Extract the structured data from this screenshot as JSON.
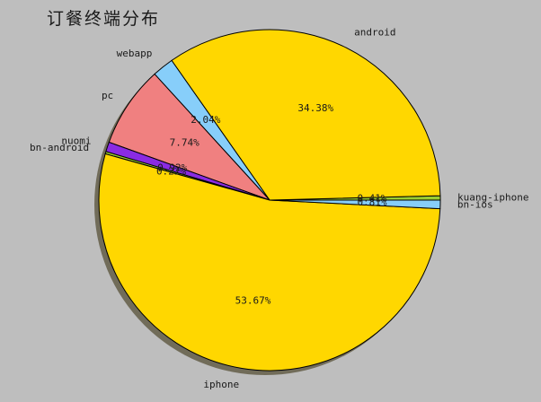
{
  "chart_data": {
    "type": "pie",
    "title": "订餐终端分布",
    "shadow": true,
    "start_angle_deg": 0,
    "direction": "counterclockwise",
    "slices": [
      {
        "label": "kuang-iphone",
        "value": 0.41,
        "value_label": "0.41%",
        "color": "#9acd32"
      },
      {
        "label": "android",
        "value": 34.38,
        "value_label": "34.38%",
        "color": "#ffd700"
      },
      {
        "label": "webapp",
        "value": 2.04,
        "value_label": "2.04%",
        "color": "#87cefa"
      },
      {
        "label": "pc",
        "value": 7.74,
        "value_label": "7.74%",
        "color": "#f08080"
      },
      {
        "label": "nuomi",
        "value": 0.92,
        "value_label": "0.92%",
        "color": "#8a2be2"
      },
      {
        "label": "bn-android",
        "value": 0.22,
        "value_label": "0.22%",
        "color": "#9acd32"
      },
      {
        "label": "iphone",
        "value": 53.67,
        "value_label": "53.67%",
        "color": "#ffd700"
      },
      {
        "label": "bn-ios",
        "value": 0.81,
        "value_label": "0.81%",
        "color": "#87cefa"
      }
    ]
  }
}
